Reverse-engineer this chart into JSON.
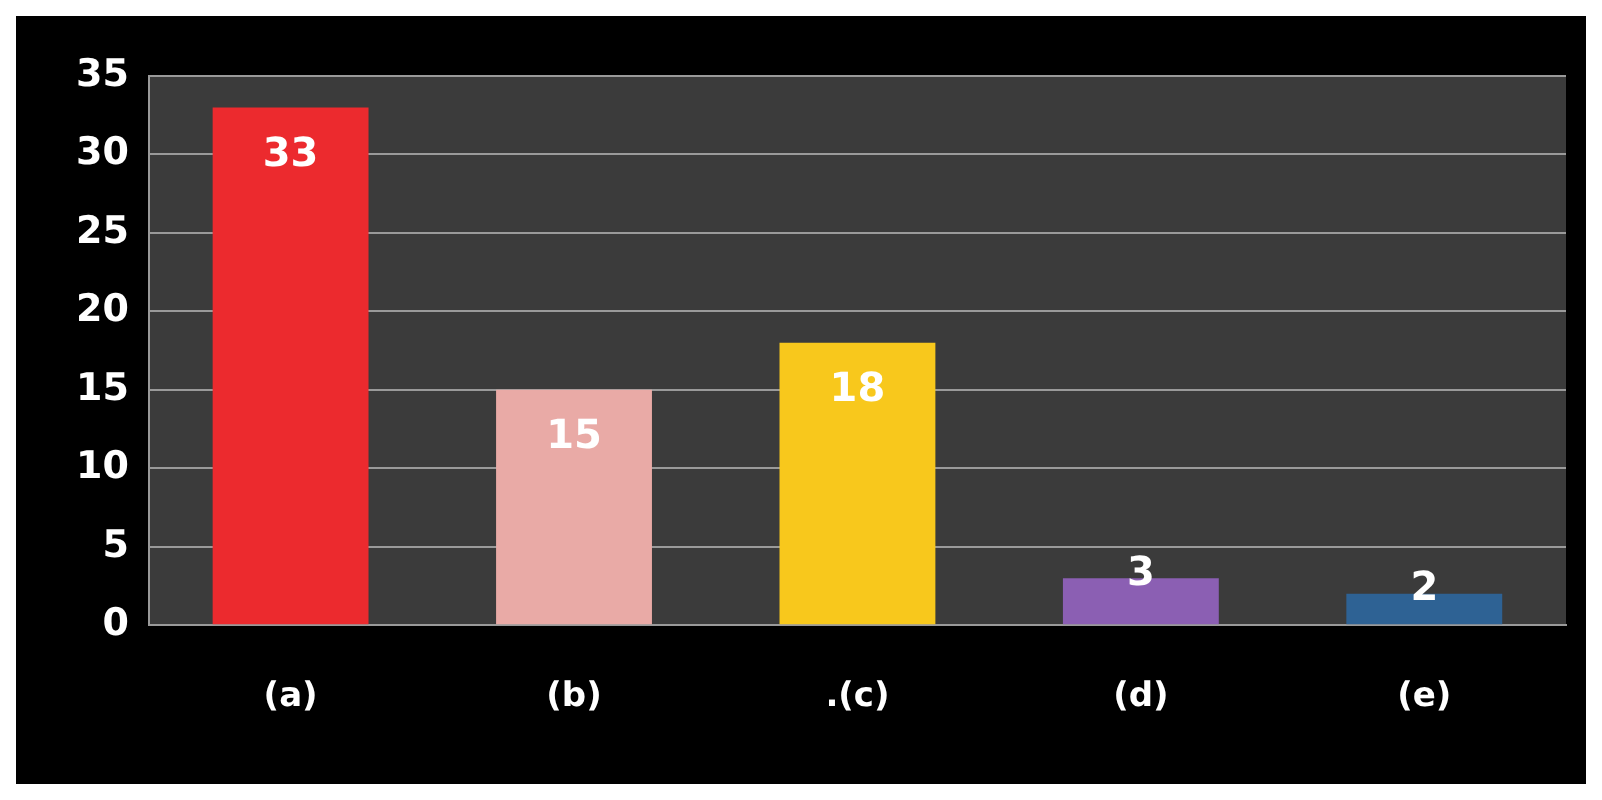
{
  "chart_data": {
    "type": "bar",
    "categories": [
      "(a)",
      "(b)",
      ".(c)",
      "(d)",
      "(e)"
    ],
    "values": [
      33,
      15,
      18,
      3,
      2
    ],
    "colors": [
      "#ec2a2e",
      "#e9aaa6",
      "#f8c81c",
      "#8b5fb3",
      "#2e6294"
    ],
    "ylim": [
      0,
      35
    ],
    "yticks": [
      0,
      5,
      10,
      15,
      20,
      25,
      30,
      35
    ],
    "grid": "y",
    "data_labels": true
  }
}
